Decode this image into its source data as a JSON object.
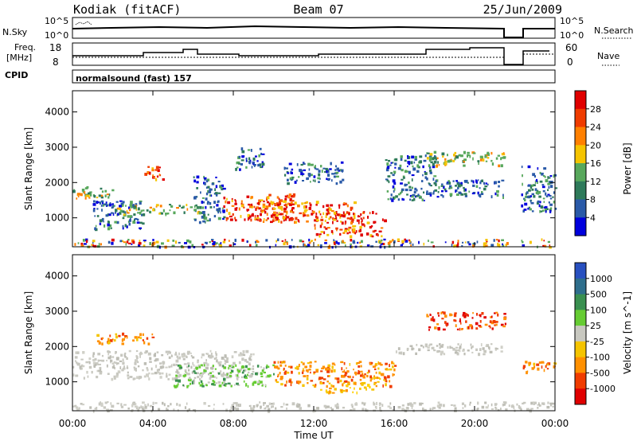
{
  "header": {
    "station": "Kodiak (fitACF)",
    "beam": "Beam 07",
    "date": "25/Jun/2009"
  },
  "status_panels": {
    "nsky_label": "N.Sky",
    "nsearch_label": "N.Search",
    "nsky_ticks": [
      "10^5",
      "10^0"
    ],
    "nsearch_ticks": [
      "10^5",
      "10^0"
    ],
    "freq_label": "Freq.",
    "freq_unit": "[MHz]",
    "freq_ticks": [
      "18",
      "8"
    ],
    "freq_range": [
      8,
      18
    ],
    "nave_label": "Nave",
    "nave_ticks": [
      "60",
      "0"
    ],
    "nave_range": [
      0,
      60
    ],
    "cpid_label": "CPID",
    "cpid_value": "normalsound (fast) 157"
  },
  "chart_data": [
    {
      "type": "heatmap",
      "panel": "power",
      "ylabel": "Slant Range [km]",
      "ylim": [
        180,
        4600
      ],
      "yticks": [
        1000,
        2000,
        3000,
        4000
      ],
      "xlabel": "Time UT",
      "xlim_hours": [
        0,
        24
      ],
      "xtick_labels": [
        "00:00",
        "04:00",
        "08:00",
        "12:00",
        "16:00",
        "20:00",
        "00:00"
      ],
      "colorbar_label": "Power [dB]",
      "colorbar_ticks": [
        "28",
        "24",
        "20",
        "16",
        "12",
        "8",
        "4"
      ],
      "colorbar_colors": [
        "#e00000",
        "#f03c00",
        "#ff8000",
        "#f5c400",
        "#58a85c",
        "#2e7a5a",
        "#2a5aa8",
        "#0000dd"
      ],
      "data_gap_hours": [
        21.6,
        22.3
      ],
      "regions": [
        {
          "t": [
            0.0,
            2.0
          ],
          "r": [
            1550,
            1900
          ],
          "level": "mid"
        },
        {
          "t": [
            1.0,
            3.5
          ],
          "r": [
            700,
            1500
          ],
          "level": "low"
        },
        {
          "t": [
            2.0,
            4.5
          ],
          "r": [
            1100,
            1400
          ],
          "level": "mid"
        },
        {
          "t": [
            3.5,
            4.5
          ],
          "r": [
            2100,
            2500
          ],
          "level": "high"
        },
        {
          "t": [
            4.5,
            6.5
          ],
          "r": [
            1100,
            1400
          ],
          "level": "mid"
        },
        {
          "t": [
            6.0,
            7.5
          ],
          "r": [
            900,
            2200
          ],
          "level": "low"
        },
        {
          "t": [
            7.5,
            11.0
          ],
          "r": [
            950,
            1700
          ],
          "level": "high"
        },
        {
          "t": [
            8.0,
            9.5
          ],
          "r": [
            2400,
            3000
          ],
          "level": "low"
        },
        {
          "t": [
            9.0,
            14.0
          ],
          "r": [
            900,
            1500
          ],
          "level": "high"
        },
        {
          "t": [
            12.0,
            15.5
          ],
          "r": [
            500,
            1200
          ],
          "level": "high"
        },
        {
          "t": [
            10.5,
            13.5
          ],
          "r": [
            2000,
            2600
          ],
          "level": "low"
        },
        {
          "t": [
            15.5,
            18.0
          ],
          "r": [
            1500,
            2800
          ],
          "level": "low"
        },
        {
          "t": [
            17.5,
            21.5
          ],
          "r": [
            2500,
            2900
          ],
          "level": "mid"
        },
        {
          "t": [
            18.0,
            21.5
          ],
          "r": [
            1600,
            2100
          ],
          "level": "low"
        },
        {
          "t": [
            22.3,
            24.0
          ],
          "r": [
            1200,
            2500
          ],
          "level": "low"
        },
        {
          "t": [
            0.0,
            21.6
          ],
          "r": [
            200,
            420
          ],
          "level": "mixed"
        },
        {
          "t": [
            22.3,
            24.0
          ],
          "r": [
            200,
            420
          ],
          "level": "mixed"
        }
      ]
    },
    {
      "type": "heatmap",
      "panel": "velocity",
      "ylabel": "Slant Range [km]",
      "ylim": [
        180,
        4600
      ],
      "yticks": [
        1000,
        2000,
        3000,
        4000
      ],
      "xlabel": "Time UT",
      "xlim_hours": [
        0,
        24
      ],
      "xtick_labels": [
        "00:00",
        "04:00",
        "08:00",
        "12:00",
        "16:00",
        "20:00",
        "00:00"
      ],
      "colorbar_label": "Velocity [m s^-1]",
      "colorbar_ticks": [
        "1000",
        "500",
        "100",
        "25",
        "-25",
        "-100",
        "-500",
        "-1000"
      ],
      "colorbar_colors": [
        "#2850c0",
        "#2e6e8c",
        "#3a9050",
        "#66cc33",
        "#c8c8c0",
        "#f5c400",
        "#ff9000",
        "#f03c00",
        "#e00000"
      ],
      "data_gap_hours": [
        21.6,
        22.3
      ],
      "regions": [
        {
          "t": [
            0.0,
            9.0
          ],
          "r": [
            1100,
            1900
          ],
          "level": "grey"
        },
        {
          "t": [
            5.0,
            10.0
          ],
          "r": [
            900,
            1500
          ],
          "level": "green"
        },
        {
          "t": [
            10.0,
            16.0
          ],
          "r": [
            900,
            1600
          ],
          "level": "orange"
        },
        {
          "t": [
            12.0,
            15.0
          ],
          "r": [
            700,
            1000
          ],
          "level": "yellow"
        },
        {
          "t": [
            17.5,
            21.5
          ],
          "r": [
            2500,
            3000
          ],
          "level": "red"
        },
        {
          "t": [
            16.0,
            21.5
          ],
          "r": [
            1800,
            2100
          ],
          "level": "grey"
        },
        {
          "t": [
            0.0,
            24.0
          ],
          "r": [
            200,
            450
          ],
          "level": "grey"
        },
        {
          "t": [
            22.3,
            24.0
          ],
          "r": [
            1300,
            1600
          ],
          "level": "orange"
        },
        {
          "t": [
            1.0,
            4.0
          ],
          "r": [
            2100,
            2400
          ],
          "level": "orange"
        }
      ]
    }
  ]
}
